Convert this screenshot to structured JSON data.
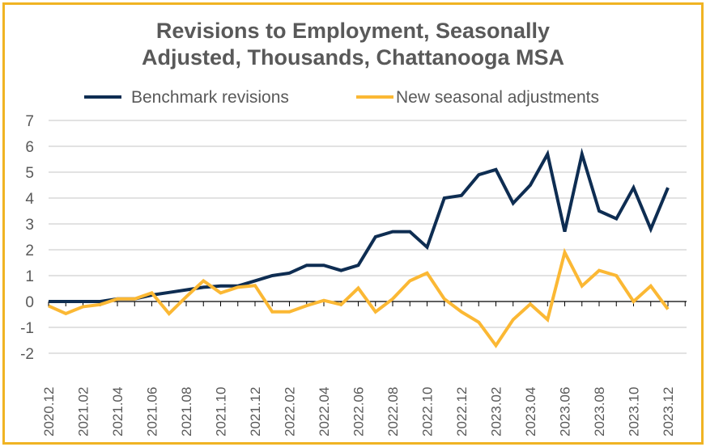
{
  "chart_data": {
    "type": "line",
    "title": "Revisions to Employment,  Seasonally Adjusted, Thousands, Chattanooga MSA",
    "title_lines": [
      "Revisions to Employment,  Seasonally",
      "Adjusted, Thousands, Chattanooga MSA"
    ],
    "xlabel": "",
    "ylabel": "",
    "ylim": [
      -2,
      7
    ],
    "yticks": [
      "-2",
      "-1",
      "0",
      "1",
      "2",
      "3",
      "4",
      "5",
      "6",
      "7"
    ],
    "legend_position": "top",
    "grid": true,
    "x": [
      "2020.12",
      "2021.01",
      "2021.02",
      "2021.03",
      "2021.04",
      "2021.05",
      "2021.06",
      "2021.07",
      "2021.08",
      "2021.09",
      "2021.10",
      "2021.11",
      "2021.12",
      "2022.01",
      "2022.02",
      "2022.03",
      "2022.04",
      "2022.05",
      "2022.06",
      "2022.07",
      "2022.08",
      "2022.09",
      "2022.10",
      "2022.11",
      "2022.12",
      "2023.01",
      "2023.02",
      "2023.03",
      "2023.04",
      "2023.05",
      "2023.06",
      "2023.07",
      "2023.08",
      "2023.09",
      "2023.10",
      "2023.11",
      "2023.12"
    ],
    "series": [
      {
        "name": "Benchmark revisions",
        "color": "#0e2d52",
        "values": [
          0,
          0,
          0,
          0,
          0.1,
          0.1,
          0.25,
          0.35,
          0.45,
          0.55,
          0.6,
          0.6,
          0.8,
          1.0,
          1.1,
          1.4,
          1.4,
          1.2,
          1.4,
          2.5,
          2.7,
          2.7,
          2.1,
          4.0,
          4.1,
          4.9,
          5.1,
          3.8,
          4.5,
          5.7,
          2.7,
          5.7,
          3.5,
          3.2,
          4.4,
          2.8,
          4.4
        ]
      },
      {
        "name": "New seasonal adjustments",
        "color": "#fbb834",
        "values": [
          -0.17,
          -0.47,
          -0.2,
          -0.12,
          0.1,
          0.1,
          0.33,
          -0.47,
          0.18,
          0.8,
          0.33,
          0.55,
          0.62,
          -0.4,
          -0.4,
          -0.16,
          0.04,
          -0.12,
          0.52,
          -0.4,
          0.1,
          0.8,
          1.1,
          0.1,
          -0.4,
          -0.8,
          -1.7,
          -0.7,
          -0.1,
          -0.7,
          1.9,
          0.6,
          1.2,
          1.0,
          0.0,
          0.6,
          -0.3
        ]
      }
    ]
  },
  "colors": {
    "frame": "#f0b323",
    "grid": "#d9d9d9",
    "text": "#595959"
  }
}
